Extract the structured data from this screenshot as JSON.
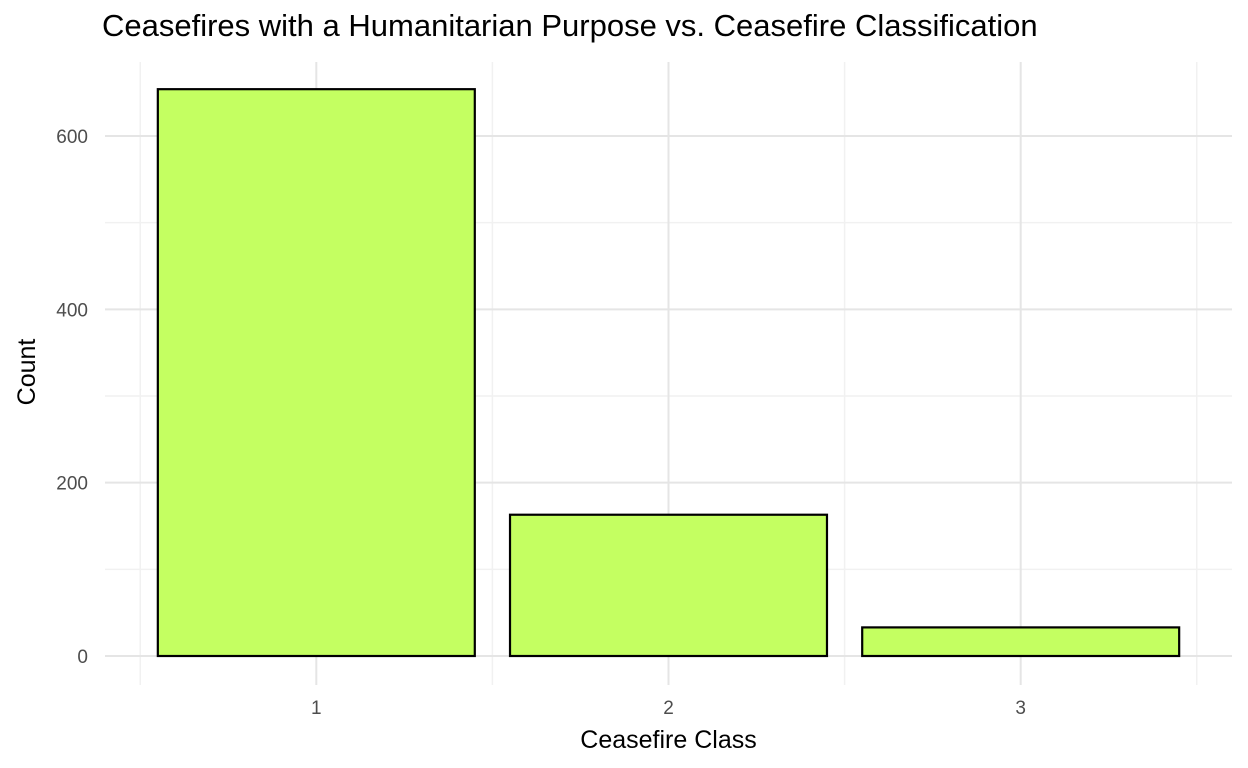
{
  "chart_data": {
    "type": "bar",
    "title": "Ceasefires with a Humanitarian Purpose vs. Ceasefire Classification",
    "xlabel": "Ceasefire Class",
    "ylabel": "Count",
    "categories": [
      "1",
      "2",
      "3"
    ],
    "values": [
      654,
      163,
      33
    ],
    "ylim": [
      0,
      684
    ],
    "yticks": [
      0,
      200,
      400,
      600
    ],
    "grid": true,
    "legend": "none",
    "bar_fill": "#c4ff61",
    "bar_stroke": "#000000"
  }
}
